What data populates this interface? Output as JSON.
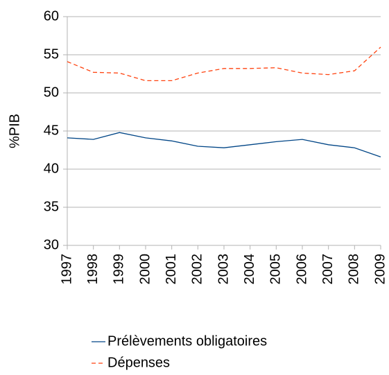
{
  "chart_data": {
    "type": "line",
    "y_label": "%PIB",
    "categories": [
      "1997",
      "1998",
      "1999",
      "2000",
      "2001",
      "2002",
      "2003",
      "2004",
      "2005",
      "2006",
      "2007",
      "2008",
      "2009"
    ],
    "series": [
      {
        "name": "Prélèvements obligatoires",
        "color": "#004586",
        "dashed": false,
        "values": [
          44.1,
          43.9,
          44.8,
          44.1,
          43.7,
          43.0,
          42.8,
          43.2,
          43.6,
          43.9,
          43.2,
          42.8,
          41.6
        ]
      },
      {
        "name": "Dépenses",
        "color": "#ff420e",
        "dashed": true,
        "values": [
          54.1,
          52.7,
          52.6,
          51.6,
          51.6,
          52.6,
          53.2,
          53.2,
          53.3,
          52.6,
          52.4,
          52.9,
          56.0
        ]
      }
    ],
    "ylim": [
      30,
      60
    ],
    "yticks": [
      30,
      35,
      40,
      45,
      50,
      55,
      60
    ],
    "grid": true
  }
}
